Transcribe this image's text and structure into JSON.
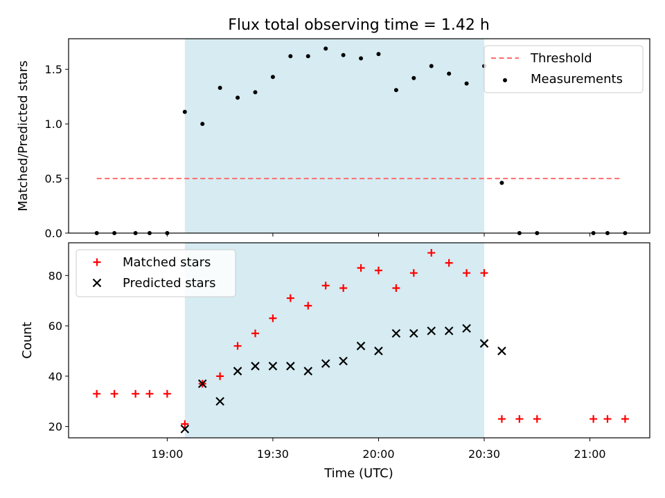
{
  "figure": {
    "title": "Flux total observing time = 1.42 h"
  },
  "chart_data": [
    {
      "type": "scatter",
      "ylabel": "Matched/Predicted stars",
      "ylim": [
        0,
        1.78
      ],
      "xlim": [
        "18:32",
        "21:17"
      ],
      "yticks": [
        {
          "v": 0.0,
          "label": "0.0"
        },
        {
          "v": 0.5,
          "label": "0.5"
        },
        {
          "v": 1.0,
          "label": "1.0"
        },
        {
          "v": 1.5,
          "label": "1.5"
        }
      ],
      "xticks": [
        "19:00",
        "19:30",
        "20:00",
        "20:30",
        "21:00"
      ],
      "show_xtick_labels": false,
      "shaded_interval": {
        "from": "19:05",
        "to": "20:30",
        "color": "#add8e6"
      },
      "threshold": {
        "name": "Threshold",
        "value": 0.5,
        "from": "18:40",
        "to": "21:09",
        "color": "#ff6b6b",
        "style": "dashed"
      },
      "series": [
        {
          "name": "Measurements",
          "marker": "dot",
          "color": "#000000",
          "x": [
            "18:40",
            "18:45",
            "18:51",
            "18:55",
            "19:00",
            "19:05",
            "19:10",
            "19:15",
            "19:20",
            "19:25",
            "19:30",
            "19:35",
            "19:40",
            "19:45",
            "19:50",
            "19:55",
            "20:00",
            "20:05",
            "20:10",
            "20:15",
            "20:20",
            "20:25",
            "20:30",
            "20:35",
            "20:40",
            "20:45",
            "21:01",
            "21:05",
            "21:10"
          ],
          "y": [
            0,
            0,
            0,
            0,
            0,
            1.11,
            1.0,
            1.33,
            1.24,
            1.29,
            1.43,
            1.62,
            1.62,
            1.69,
            1.63,
            1.6,
            1.64,
            1.31,
            1.42,
            1.53,
            1.46,
            1.37,
            1.53,
            0.46,
            0,
            0,
            0,
            0,
            0
          ]
        }
      ],
      "legend": {
        "position": "top-right",
        "entries": [
          {
            "label": "Threshold",
            "kind": "dash",
            "color": "#ff6b6b"
          },
          {
            "label": "Measurements",
            "kind": "dot",
            "color": "#000000"
          }
        ]
      }
    },
    {
      "type": "scatter",
      "xlabel": "Time (UTC)",
      "ylabel": "Count",
      "ylim": [
        15.5,
        93
      ],
      "xlim": [
        "18:32",
        "21:17"
      ],
      "yticks": [
        {
          "v": 20,
          "label": "20"
        },
        {
          "v": 40,
          "label": "40"
        },
        {
          "v": 60,
          "label": "60"
        },
        {
          "v": 80,
          "label": "80"
        }
      ],
      "xticks": [
        "19:00",
        "19:30",
        "20:00",
        "20:30",
        "21:00"
      ],
      "show_xtick_labels": true,
      "shaded_interval": {
        "from": "19:05",
        "to": "20:30",
        "color": "#add8e6"
      },
      "series": [
        {
          "name": "Matched stars",
          "marker": "plus",
          "color": "#ff0000",
          "x": [
            "18:40",
            "18:45",
            "18:51",
            "18:55",
            "19:00",
            "19:05",
            "19:10",
            "19:15",
            "19:20",
            "19:25",
            "19:30",
            "19:35",
            "19:40",
            "19:45",
            "19:50",
            "19:55",
            "20:00",
            "20:05",
            "20:10",
            "20:15",
            "20:20",
            "20:25",
            "20:30",
            "20:35",
            "20:40",
            "20:45",
            "21:01",
            "21:05",
            "21:10"
          ],
          "y": [
            33,
            33,
            33,
            33,
            33,
            21,
            37,
            40,
            52,
            57,
            63,
            71,
            68,
            76,
            75,
            83,
            82,
            75,
            81,
            89,
            85,
            81,
            81,
            23,
            23,
            23,
            23,
            23,
            23
          ]
        },
        {
          "name": "Predicted stars",
          "marker": "x",
          "color": "#000000",
          "x": [
            "19:05",
            "19:10",
            "19:15",
            "19:20",
            "19:25",
            "19:30",
            "19:35",
            "19:40",
            "19:45",
            "19:50",
            "19:55",
            "20:00",
            "20:05",
            "20:10",
            "20:15",
            "20:20",
            "20:25",
            "20:30",
            "20:35"
          ],
          "y": [
            19,
            37,
            30,
            42,
            44,
            44,
            44,
            42,
            45,
            46,
            52,
            50,
            57,
            57,
            58,
            58,
            59,
            53,
            50
          ]
        }
      ],
      "legend": {
        "position": "top-left",
        "entries": [
          {
            "label": "Matched stars",
            "kind": "plus",
            "color": "#ff0000"
          },
          {
            "label": "Predicted stars",
            "kind": "x",
            "color": "#000000"
          }
        ]
      }
    }
  ]
}
